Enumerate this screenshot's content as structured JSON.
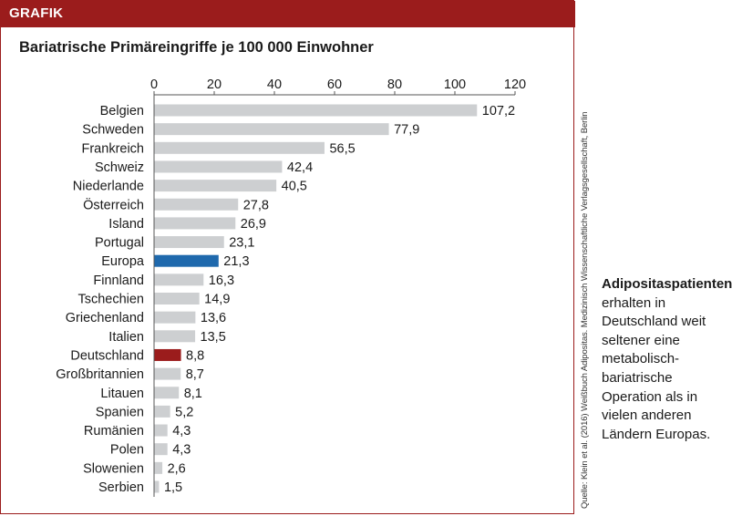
{
  "header": {
    "label": "GRAFIK"
  },
  "chart_data": {
    "type": "bar",
    "orientation": "horizontal",
    "title": "Bariatrische Primäreingriffe je 100 000 Einwohner",
    "xlabel": "",
    "ylabel": "",
    "xlim": [
      0,
      120
    ],
    "ticks": [
      "0",
      "20",
      "40",
      "60",
      "80",
      "100",
      "120"
    ],
    "tick_values": [
      0,
      20,
      40,
      60,
      80,
      100,
      120
    ],
    "grid": false,
    "categories": [
      "Belgien",
      "Schweden",
      "Frankreich",
      "Schweiz",
      "Niederlande",
      "Österreich",
      "Island",
      "Portugal",
      "Europa",
      "Finnland",
      "Tschechien",
      "Griechenland",
      "Italien",
      "Deutschland",
      "Großbritannien",
      "Litauen",
      "Spanien",
      "Rumänien",
      "Polen",
      "Slowenien",
      "Serbien"
    ],
    "values": [
      107.2,
      77.9,
      56.5,
      42.4,
      40.5,
      27.8,
      26.9,
      23.1,
      21.3,
      16.3,
      14.9,
      13.6,
      13.5,
      8.8,
      8.7,
      8.1,
      5.2,
      4.3,
      4.3,
      2.6,
      1.5
    ],
    "value_labels": [
      "107,2",
      "77,9",
      "56,5",
      "42,4",
      "40,5",
      "27,8",
      "26,9",
      "23,1",
      "21,3",
      "16,3",
      "14,9",
      "13,6",
      "13,5",
      "8,8",
      "8,7",
      "8,1",
      "5,2",
      "4,3",
      "4,3",
      "2,6",
      "1,5"
    ],
    "colors": {
      "default": "#cdcfd1",
      "highlight_europa": "#1f69ad",
      "highlight_deutschland": "#9b1c1c"
    },
    "highlights": {
      "Europa": "highlight_europa",
      "Deutschland": "highlight_deutschland"
    }
  },
  "source": "Quelle: Klein et al. (2016) Weißbuch Adipositas. Medizinisch Wissenschaftliche Verlagsgesellschaft, Berlin",
  "sidenote": {
    "lead": "Adipositaspatienten",
    "body": "erhalten in Deutschland weit seltener eine metabolisch-bariatrische Operation als in vielen anderen Ländern Europas."
  }
}
